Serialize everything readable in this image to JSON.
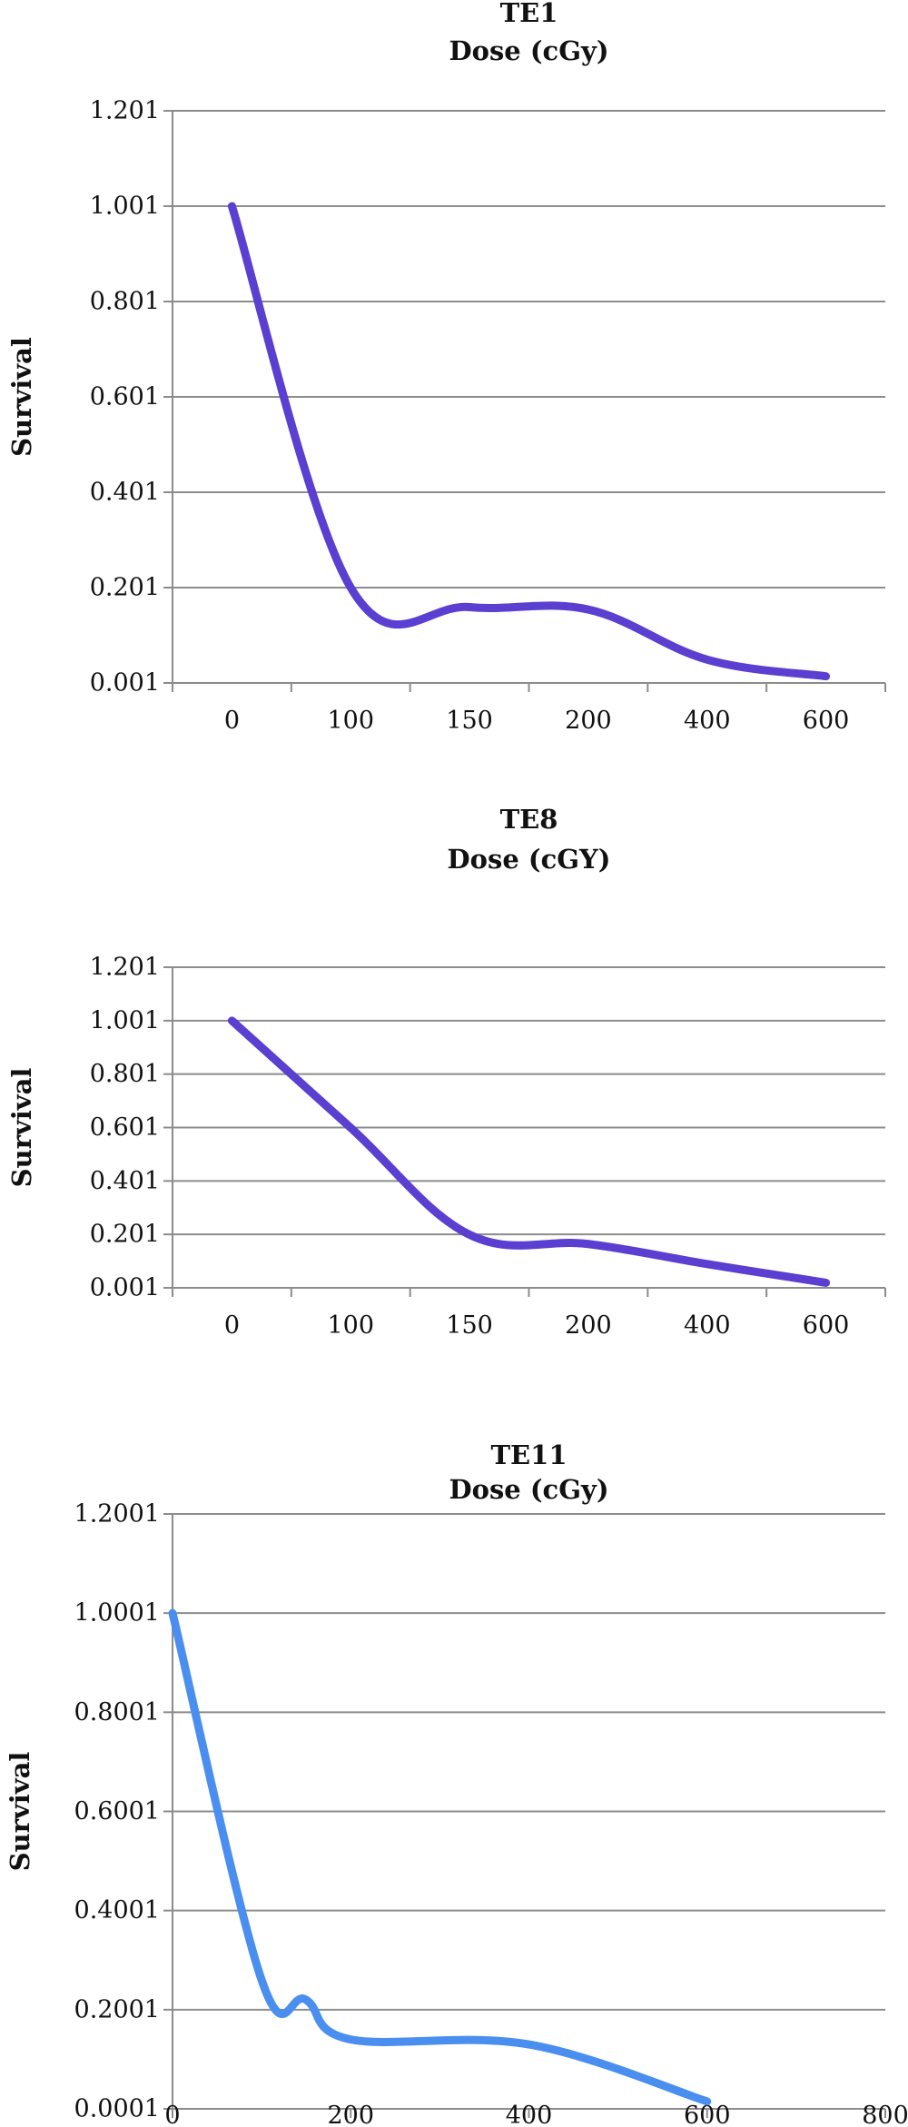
{
  "chart_data": [
    {
      "type": "line",
      "title": "TE1",
      "subtitle": "Dose (cGy)",
      "xlabel": "",
      "ylabel": "Survival",
      "x_axis": "category",
      "categories": [
        "0",
        "100",
        "150",
        "200",
        "400",
        "600"
      ],
      "ylim": [
        0.001,
        1.201
      ],
      "yticks": [
        "1.201",
        "1.001",
        "0.801",
        "0.601",
        "0.401",
        "0.201",
        "0.001"
      ],
      "grid": true,
      "series": [
        {
          "values": [
            1.001,
            0.201,
            0.16,
            0.155,
            0.05,
            0.015
          ],
          "color": "#5a3fd0"
        }
      ]
    },
    {
      "type": "line",
      "title": "TE8",
      "subtitle": "Dose (cGY)",
      "xlabel": "",
      "ylabel": "Survival",
      "x_axis": "category",
      "categories": [
        "0",
        "100",
        "150",
        "200",
        "400",
        "600"
      ],
      "ylim": [
        0.001,
        1.201
      ],
      "yticks": [
        "1.201",
        "1.001",
        "0.801",
        "0.601",
        "0.401",
        "0.201",
        "0.001"
      ],
      "grid": true,
      "series": [
        {
          "values": [
            1.001,
            0.6,
            0.2,
            0.165,
            0.09,
            0.02
          ],
          "color": "#5a3fd0"
        }
      ]
    },
    {
      "type": "line",
      "title": "TE11",
      "subtitle": "Dose (cGy)",
      "xlabel": "",
      "ylabel": "Survival",
      "x_axis": "numeric",
      "xlim": [
        0,
        800
      ],
      "xticks": [
        "0",
        "200",
        "400",
        "600",
        "800"
      ],
      "ylim": [
        0.0001,
        1.2001
      ],
      "yticks": [
        "1.2001",
        "1.0001",
        "0.8001",
        "0.6001",
        "0.4001",
        "0.2001",
        "0.0001"
      ],
      "grid": true,
      "series": [
        {
          "x": [
            0,
            100,
            150,
            200,
            400,
            600
          ],
          "values": [
            1.0001,
            0.26,
            0.22,
            0.14,
            0.13,
            0.015
          ],
          "color": "#4a8ff0"
        }
      ]
    }
  ]
}
